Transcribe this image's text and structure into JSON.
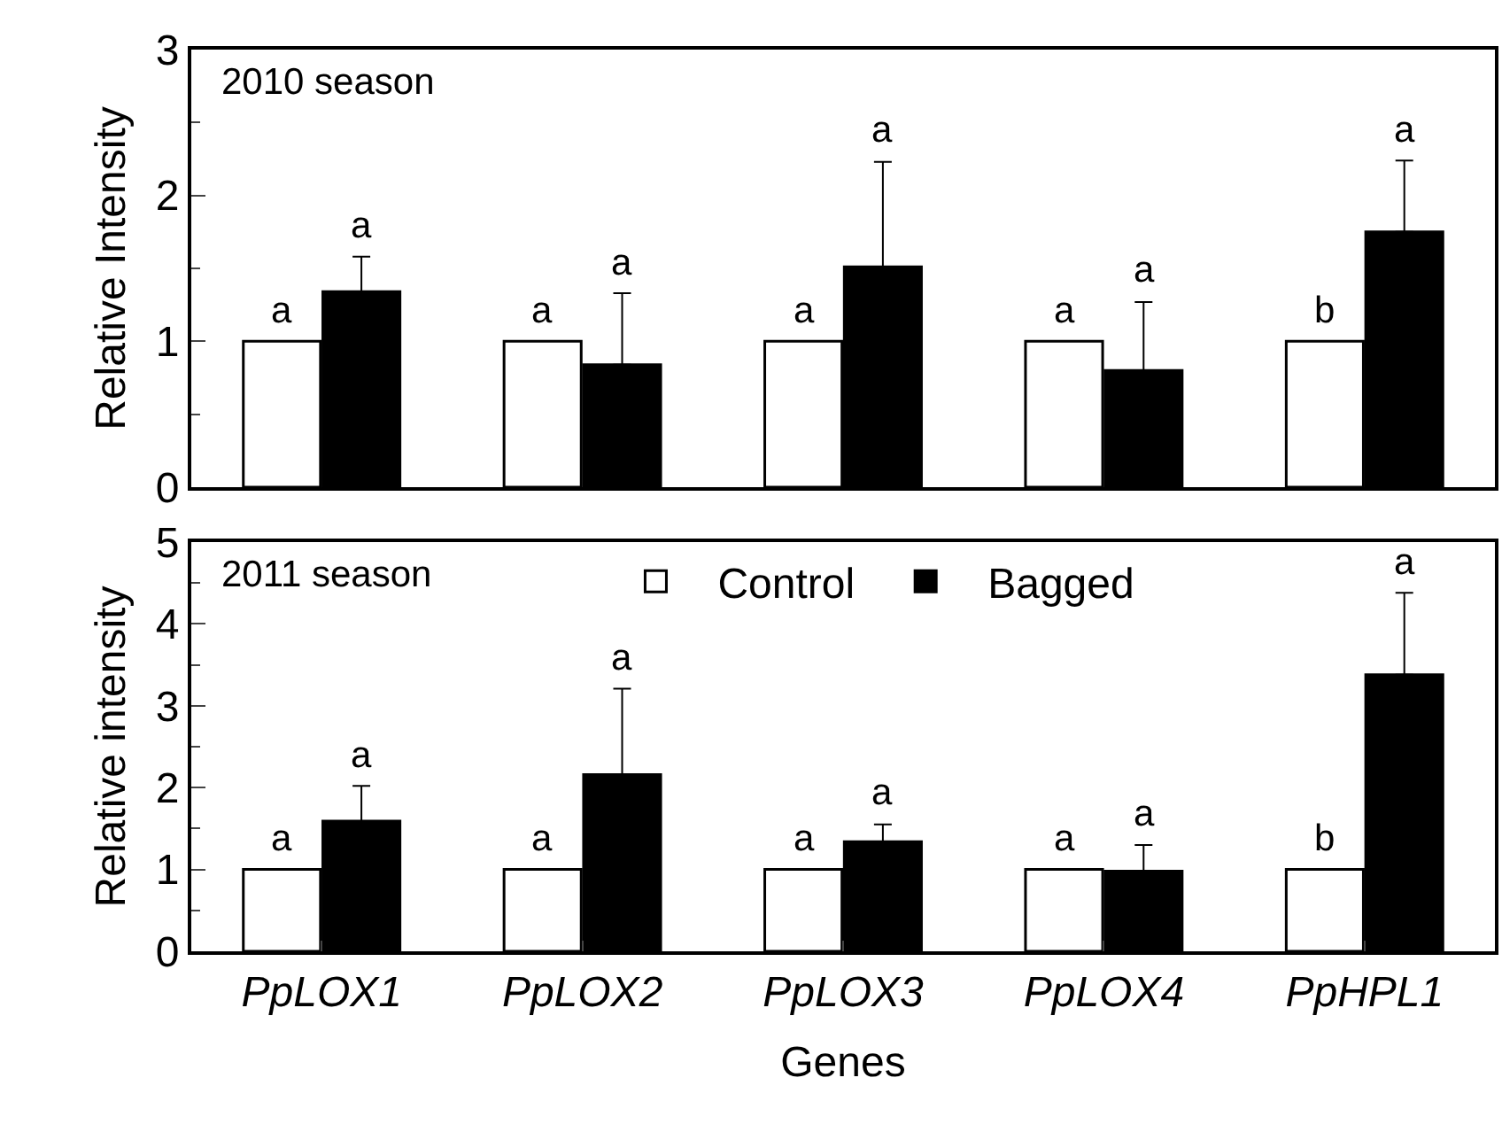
{
  "chart_data": [
    {
      "type": "bar",
      "ylabel": "Relative Intensity",
      "categories": [
        null,
        null,
        null,
        null,
        null
      ],
      "ylim": [
        0,
        3
      ],
      "yticks": [
        0,
        {
          "value": 0.5,
          "label": null
        },
        1,
        {
          "value": 1.5,
          "label": null
        },
        2,
        {
          "value": 2.5,
          "label": null
        },
        3
      ],
      "grid": false,
      "legend": false,
      "series": [
        {
          "color": "#ffffff",
          "values": [
            1,
            1,
            1,
            1,
            1
          ],
          "value_labels": [
            "a",
            "a",
            "a",
            "a",
            "b"
          ]
        },
        {
          "color": "#000000",
          "values": [
            1.34,
            0.84,
            1.51,
            0.8,
            1.75
          ],
          "errors": [
            [
              1.34,
              1.58
            ],
            [
              0.84,
              1.33
            ],
            [
              1.51,
              2.23
            ],
            [
              0.8,
              1.27
            ],
            [
              1.75,
              2.24
            ]
          ],
          "value_labels": [
            "a",
            "a",
            "a",
            "a",
            "a"
          ]
        }
      ],
      "annotations": [
        "2010 season"
      ]
    },
    {
      "type": "bar",
      "xlabel": "Genes",
      "ylabel": "Relative intensity",
      "categories": [
        "PpLOX1",
        "PpLOX2",
        "PpLOX3",
        "PpLOX4",
        "PpHPL1"
      ],
      "ylim": [
        0,
        5
      ],
      "yticks": [
        0,
        {
          "value": 0.5,
          "label": null
        },
        1,
        {
          "value": 1.5,
          "label": null
        },
        2,
        {
          "value": 2.5,
          "label": null
        },
        3,
        {
          "value": 3.5,
          "label": null
        },
        4,
        {
          "value": 4.5,
          "label": null
        },
        5
      ],
      "grid": false,
      "legend": "top",
      "series": [
        {
          "name": "Control",
          "color": "#ffffff",
          "values": [
            1,
            1,
            1,
            1,
            1
          ],
          "value_labels": [
            "a",
            "a",
            "a",
            "a",
            "b"
          ]
        },
        {
          "name": "Bagged",
          "color": "#000000",
          "values": [
            1.59,
            2.16,
            1.34,
            0.98,
            3.38
          ],
          "errors": [
            [
              1.59,
              2.02
            ],
            [
              2.16,
              3.21
            ],
            [
              1.34,
              1.55
            ],
            [
              0.98,
              1.3
            ],
            [
              3.38,
              4.38
            ]
          ],
          "value_labels": [
            "a",
            "a",
            "a",
            "a",
            "a"
          ]
        }
      ],
      "annotations": [
        "2011 season"
      ]
    }
  ]
}
